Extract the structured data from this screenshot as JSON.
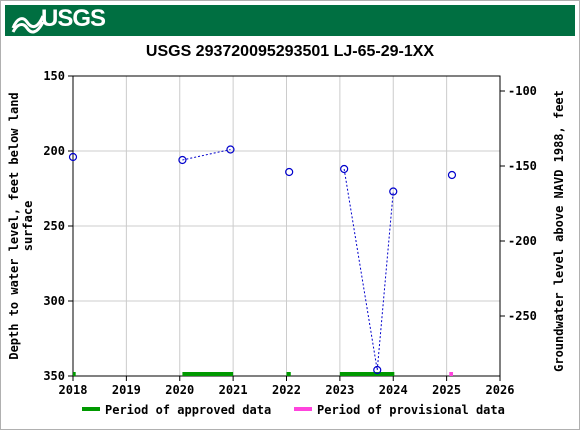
{
  "header": {
    "logo_text": "USGS",
    "logo_icon": "usgs-logo-icon",
    "color": "#006f41"
  },
  "chart_data": {
    "type": "scatter",
    "title": "USGS 293720095293501 LJ-65-29-1XX",
    "ylabel_left": [
      "Depth to water level, feet below land",
      "surface"
    ],
    "ylabel_right": "Groundwater level above NAVD 1988, feet",
    "xlim": [
      2018,
      2026
    ],
    "x_ticks": [
      "2018",
      "2019",
      "2020",
      "2021",
      "2022",
      "2023",
      "2024",
      "2025",
      "2026"
    ],
    "ylim_left": [
      150,
      350
    ],
    "y_ticks_left": [
      "150",
      "200",
      "250",
      "300",
      "350"
    ],
    "ylim_right": [
      -90,
      -290
    ],
    "y_ticks_right": [
      "-100",
      "-150",
      "-200",
      "-250"
    ],
    "grid": true,
    "series": [
      {
        "name": "Depth to water level",
        "color": "#0000cc",
        "points": [
          {
            "x": 2018.0,
            "y": 204
          },
          {
            "x": 2020.05,
            "y": 206
          },
          {
            "x": 2020.95,
            "y": 199
          },
          {
            "x": 2022.05,
            "y": 214
          },
          {
            "x": 2023.08,
            "y": 212
          },
          {
            "x": 2023.7,
            "y": 346
          },
          {
            "x": 2024.0,
            "y": 227
          },
          {
            "x": 2025.1,
            "y": 216
          }
        ],
        "connected_segments": [
          [
            1,
            2
          ],
          [
            4,
            5
          ],
          [
            5,
            6
          ]
        ]
      }
    ],
    "periods": [
      {
        "type": "approved",
        "start": 2018.0,
        "end": 2018.05
      },
      {
        "type": "approved",
        "start": 2020.05,
        "end": 2021.0
      },
      {
        "type": "approved",
        "start": 2022.0,
        "end": 2022.08
      },
      {
        "type": "approved",
        "start": 2023.0,
        "end": 2024.02
      },
      {
        "type": "provisional",
        "start": 2025.05,
        "end": 2025.12
      }
    ],
    "legend": [
      {
        "key": "approved",
        "label": "Period of approved data",
        "color": "#009900"
      },
      {
        "key": "provisional",
        "label": "Period of provisional data",
        "color": "#ff44dd"
      }
    ],
    "legend_placement": "bottom"
  }
}
